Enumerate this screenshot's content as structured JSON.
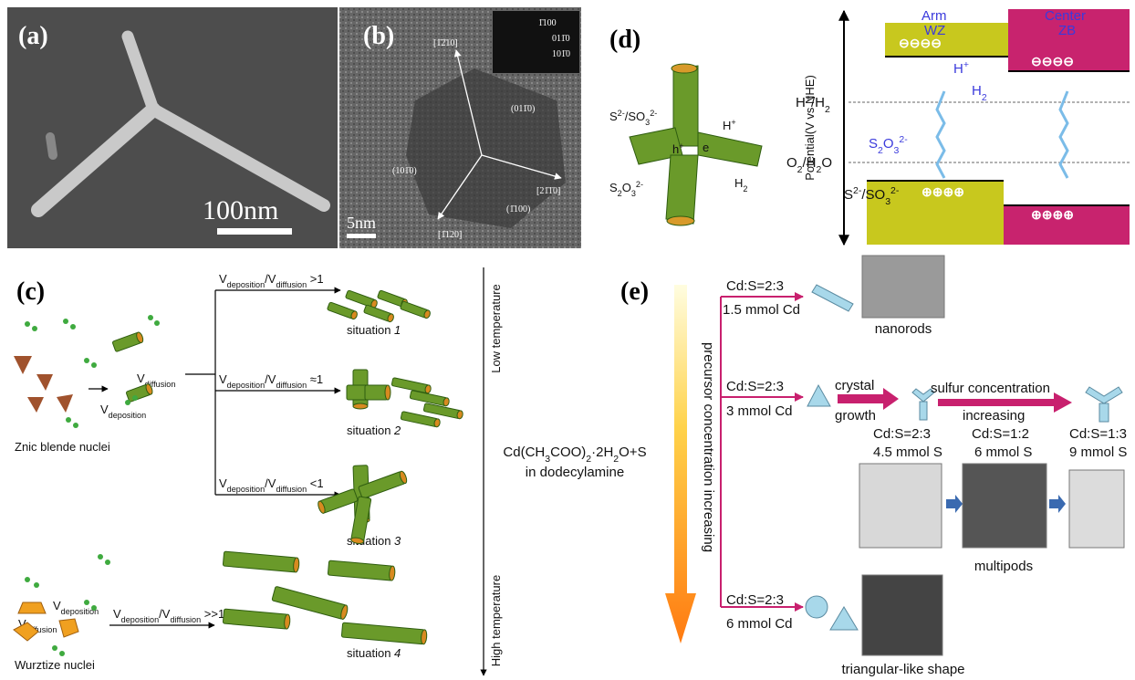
{
  "panels": {
    "a": {
      "label": "(a)",
      "scale_bar": "100nm"
    },
    "b": {
      "label": "(b)",
      "scale_bar": "5nm",
      "directions": [
        "[1̄2̄10]",
        "[21̄1̄0]",
        "[1̄120]"
      ],
      "planes": [
        "(101̄0)",
        "(011̄0)",
        "(1̄100)"
      ],
      "diffraction": [
        "1̄100",
        "011̄0",
        "101̄0"
      ]
    },
    "c": {
      "label": "(c)",
      "conditions": [
        [
          {
            "text": "V",
            "sub": "deposition"
          },
          {
            "text": "/V",
            "sub": "diffusion"
          },
          {
            "text": " >1"
          }
        ],
        [
          {
            "text": "V",
            "sub": "deposition"
          },
          {
            "text": "/V",
            "sub": "diffusion"
          },
          {
            "text": " ≈1"
          }
        ],
        [
          {
            "text": "V",
            "sub": "deposition"
          },
          {
            "text": "/V",
            "sub": "diffusion"
          },
          {
            "text": " <1"
          }
        ],
        [
          {
            "text": "V",
            "sub": "deposition"
          },
          {
            "text": "/V",
            "sub": "diffusion"
          },
          {
            "text": " >>1"
          }
        ]
      ],
      "situations": [
        {
          "text": "situation ",
          "n": "1"
        },
        {
          "text": "situation ",
          "n": "2"
        },
        {
          "text": "situation ",
          "n": "3"
        },
        {
          "text": "situation ",
          "n": "4"
        }
      ],
      "v_deposition": [
        {
          "text": "V",
          "sub": "deposition"
        }
      ],
      "v_diffusion": [
        {
          "text": "V",
          "sub": "diffusion"
        }
      ],
      "zb_nuclei": "Znic blende nuclei",
      "wz_nuclei": "Wurztize nuclei",
      "low_temp": "Low temperature",
      "high_temp": "High temperature"
    },
    "precursor": {
      "line1": [
        {
          "text": "Cd(CH",
          "sub": "3"
        },
        {
          "text": "COO)",
          "sub": "2"
        },
        {
          "text": "·2H",
          "sub": "2"
        },
        {
          "text": "O+S"
        }
      ],
      "line2": "in dodecylamine"
    },
    "d": {
      "label": "(d)",
      "arm": "Arm",
      "wz": "WZ",
      "center": "Center",
      "zb": "ZB",
      "axis": "Potential(V vs NHE)",
      "h_level": [
        {
          "text": "H",
          "sup": "+"
        },
        {
          "text": "/H",
          "sub": "2"
        }
      ],
      "o_level": [
        {
          "text": "O",
          "sub": "2"
        },
        {
          "text": "/H",
          "sub": "2"
        },
        {
          "text": "O"
        }
      ],
      "sacrificial": [
        {
          "text": "S",
          "sup": "2-"
        },
        {
          "text": "/SO",
          "sub": "3",
          "sup": "2-"
        }
      ],
      "thiosulfate": [
        {
          "text": "S",
          "sub": "2"
        },
        {
          "text": "O",
          "sub": "3",
          "sup": "2-"
        }
      ],
      "proton": [
        {
          "text": "H",
          "sup": "+"
        }
      ],
      "hydrogen": [
        {
          "text": "H",
          "sub": "2"
        }
      ],
      "hole": [
        {
          "text": "h",
          "sup": "+"
        }
      ],
      "electron": "e"
    },
    "e": {
      "label": "(e)",
      "gradient": "precursor concentration increasing",
      "row1": {
        "ratio": "Cd:S=2:3",
        "amount": "1.5 mmol Cd",
        "product": "nanorods"
      },
      "row2": {
        "ratio": "Cd:S=2:3",
        "amount": "3 mmol Cd",
        "step1": "crystal",
        "step2": "growth",
        "arrow1": "sulfur concentration",
        "arrow2": "increasing",
        "samples": [
          {
            "ratio": "Cd:S=2:3",
            "amount": "4.5 mmol S"
          },
          {
            "ratio": "Cd:S=1:2",
            "amount": "6 mmol S"
          },
          {
            "ratio": "Cd:S=1:3",
            "amount": "9 mmol S"
          }
        ],
        "product": "multipods"
      },
      "row3": {
        "ratio": "Cd:S=2:3",
        "amount": "6 mmol Cd",
        "product": "triangular-like shape"
      }
    }
  }
}
